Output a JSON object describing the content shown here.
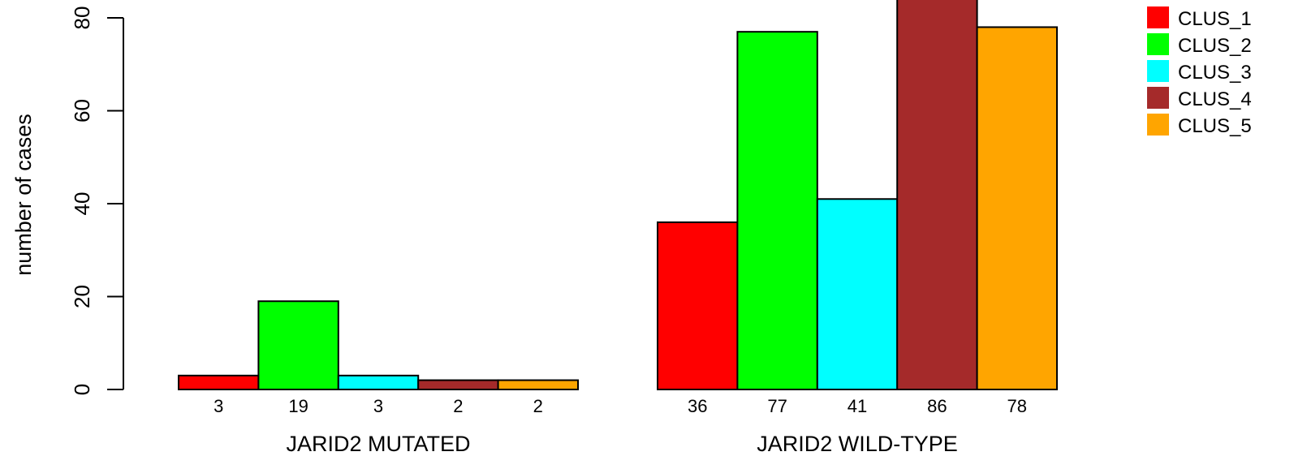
{
  "chart_data": {
    "type": "bar",
    "ylabel": "number of cases",
    "ylim": [
      0,
      80
    ],
    "yticks": [
      0,
      20,
      40,
      60,
      80
    ],
    "grid": false,
    "legend_position": "top-right",
    "groups": [
      {
        "label": "JARID2 MUTATED",
        "values": [
          3,
          19,
          3,
          2,
          2
        ]
      },
      {
        "label": "JARID2 WILD-TYPE",
        "values": [
          36,
          77,
          41,
          86,
          78
        ]
      }
    ],
    "series": [
      {
        "name": "CLUS_1",
        "color": "#ff0000"
      },
      {
        "name": "CLUS_2",
        "color": "#00ff00"
      },
      {
        "name": "CLUS_3",
        "color": "#00ffff"
      },
      {
        "name": "CLUS_4",
        "color": "#a52a2a"
      },
      {
        "name": "CLUS_5",
        "color": "#ffa500"
      }
    ]
  }
}
